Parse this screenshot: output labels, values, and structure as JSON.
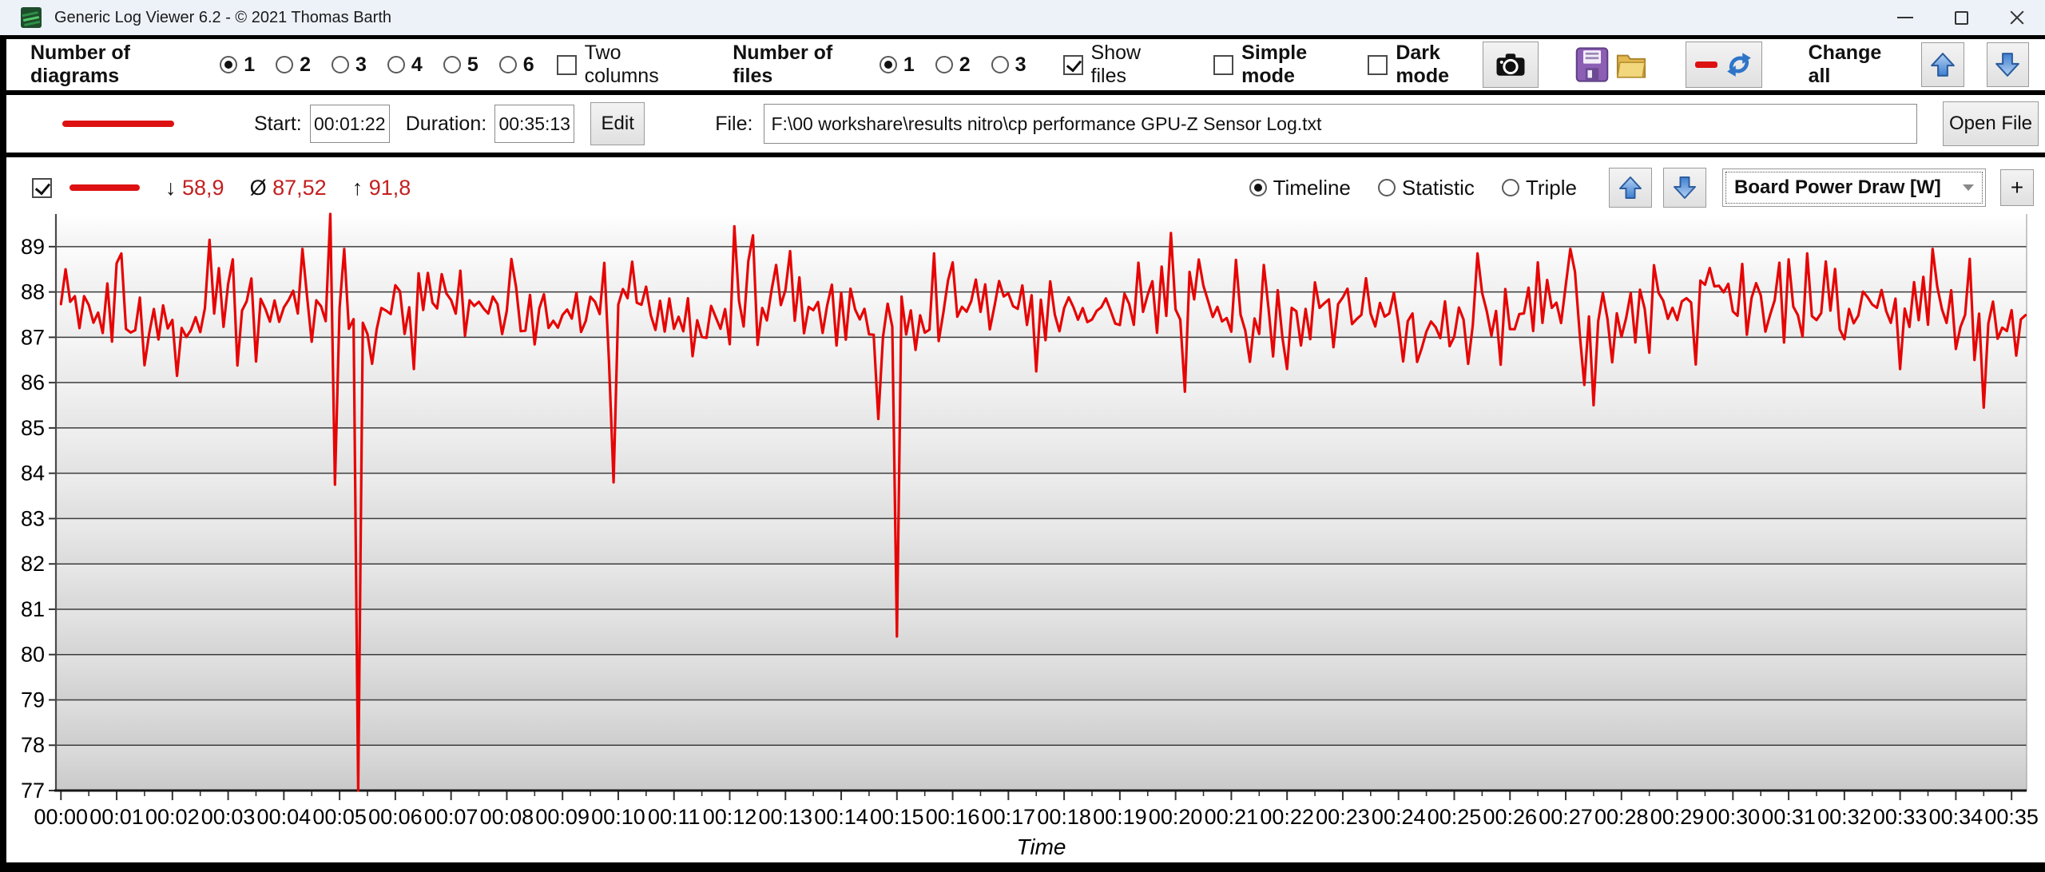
{
  "window": {
    "title": "Generic Log Viewer 6.2 - © 2021 Thomas Barth"
  },
  "toolbar": {
    "diagrams_label": "Number of diagrams",
    "diagram_options": [
      "1",
      "2",
      "3",
      "4",
      "5",
      "6"
    ],
    "diagram_selected": "1",
    "two_columns_label": "Two columns",
    "two_columns_checked": false,
    "files_label": "Number of files",
    "file_options": [
      "1",
      "2",
      "3"
    ],
    "file_selected": "1",
    "show_files_label": "Show files",
    "show_files_checked": true,
    "simple_mode_label": "Simple mode",
    "simple_mode_checked": false,
    "dark_mode_label": "Dark mode",
    "dark_mode_checked": false,
    "change_all_label": "Change all"
  },
  "file_row": {
    "start_label": "Start:",
    "start_value": "00:01:22",
    "duration_label": "Duration:",
    "duration_value": "00:35:13",
    "edit_label": "Edit",
    "file_label": "File:",
    "file_path": "F:\\00 workshare\\results nitro\\cp performance GPU-Z Sensor Log.txt",
    "open_file_label": "Open File",
    "legend_color": "#dd1111"
  },
  "series_row": {
    "series_enabled": true,
    "stats": {
      "min_symbol": "↓",
      "min": "58,9",
      "avg_symbol": "Ø",
      "avg": "87,52",
      "max_symbol": "↑",
      "max": "91,8"
    },
    "view_options": [
      "Timeline",
      "Statistic",
      "Triple"
    ],
    "view_selected": "Timeline",
    "signal_selector": "Board Power Draw [W]",
    "add_button_label": "+"
  },
  "chart_data": {
    "type": "line",
    "title": "",
    "xlabel": "Time",
    "ylabel": "",
    "grid": true,
    "legend_position": "none",
    "x_ticks": [
      "00:00",
      "00:01",
      "00:02",
      "00:03",
      "00:04",
      "00:05",
      "00:06",
      "00:07",
      "00:08",
      "00:09",
      "00:10",
      "00:11",
      "00:12",
      "00:13",
      "00:14",
      "00:15",
      "00:16",
      "00:17",
      "00:18",
      "00:19",
      "00:20",
      "00:21",
      "00:22",
      "00:23",
      "00:24",
      "00:25",
      "00:26",
      "00:27",
      "00:28",
      "00:29",
      "00:30",
      "00:31",
      "00:32",
      "00:33",
      "00:34",
      "00:35"
    ],
    "y_ticks": [
      77,
      78,
      79,
      80,
      81,
      82,
      83,
      84,
      85,
      86,
      87,
      88,
      89
    ],
    "ylim": [
      77,
      89.72
    ],
    "xlim_minutes": [
      -0.09,
      35.27
    ],
    "series": [
      {
        "name": "Board Power Draw [W]",
        "color": "#e60505",
        "stats": {
          "min": 58.9,
          "avg": 87.52,
          "max": 91.8
        },
        "baseline_mean": 87.55,
        "noise_band": [
          86.35,
          88.75
        ],
        "samples_per_minute": 12,
        "noise_seed": 13,
        "anomalies": [
          [
            1.05,
            88.85
          ],
          [
            2.05,
            86.15
          ],
          [
            2.7,
            89.15
          ],
          [
            4.35,
            88.95
          ],
          [
            4.83,
            91.8
          ],
          [
            4.9,
            83.75
          ],
          [
            5.1,
            88.95
          ],
          [
            5.35,
            58.9
          ],
          [
            6.3,
            86.3
          ],
          [
            9.95,
            83.8
          ],
          [
            12.05,
            89.45
          ],
          [
            12.4,
            89.25
          ],
          [
            13.05,
            88.9
          ],
          [
            14.65,
            85.2
          ],
          [
            15.02,
            80.4
          ],
          [
            15.7,
            88.85
          ],
          [
            17.5,
            86.25
          ],
          [
            19.9,
            89.3
          ],
          [
            20.15,
            85.8
          ],
          [
            22.0,
            86.3
          ],
          [
            25.45,
            88.85
          ],
          [
            27.1,
            88.95
          ],
          [
            27.35,
            85.95
          ],
          [
            27.47,
            85.5
          ],
          [
            29.3,
            86.4
          ],
          [
            31.3,
            88.85
          ],
          [
            33.0,
            86.3
          ],
          [
            33.6,
            88.95
          ],
          [
            34.33,
            86.5
          ],
          [
            34.5,
            85.45
          ]
        ]
      }
    ]
  }
}
